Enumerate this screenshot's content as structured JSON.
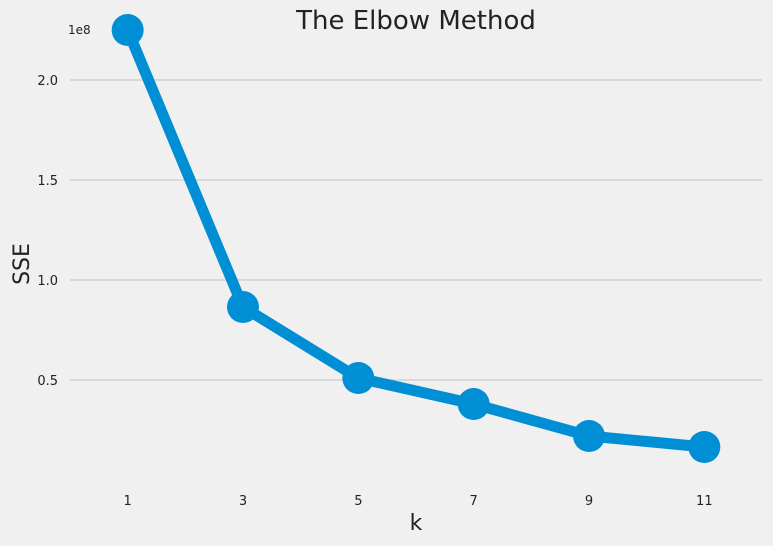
{
  "chart_data": {
    "type": "line",
    "title": "The Elbow Method",
    "xlabel": "k",
    "ylabel": "SSE",
    "y_offset_label": "1e8",
    "x": [
      1,
      3,
      5,
      7,
      9,
      11
    ],
    "x_ticks": [
      "1",
      "3",
      "5",
      "7",
      "9",
      "11"
    ],
    "y_ticks": [
      0.5,
      1.0,
      1.5,
      2.0
    ],
    "y_tick_labels": [
      "0.5",
      "1.0",
      "1.5",
      "2.0"
    ],
    "y_tick_scale": 100000000,
    "series": [
      {
        "values": [
          225000000,
          86500000,
          51000000,
          38000000,
          22000000,
          16500000
        ]
      }
    ],
    "xlim": [
      0,
      12
    ],
    "ylim": [
      0,
      235000000
    ],
    "grid": "horizontal",
    "style": "fivethirtyeight",
    "line_color": "#008fd5"
  }
}
